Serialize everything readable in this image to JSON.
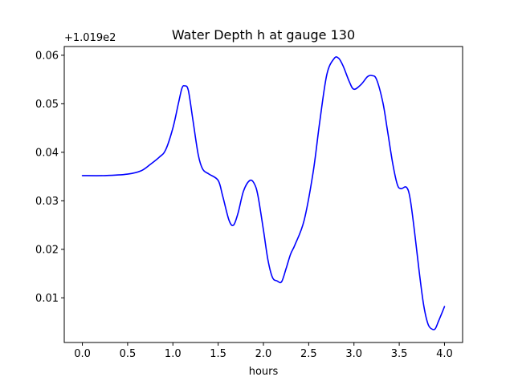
{
  "chart_data": {
    "type": "line",
    "title": "Water Depth h at gauge 130",
    "xlabel": "hours",
    "ylabel": "",
    "offset_label": "+1.019e2",
    "xlim": [
      -0.2,
      4.2
    ],
    "ylim": [
      0.0008,
      0.0618
    ],
    "xticks": [
      0.0,
      0.5,
      1.0,
      1.5,
      2.0,
      2.5,
      3.0,
      3.5,
      4.0
    ],
    "xtick_labels": [
      "0.0",
      "0.5",
      "1.0",
      "1.5",
      "2.0",
      "2.5",
      "3.0",
      "3.5",
      "4.0"
    ],
    "yticks": [
      0.01,
      0.02,
      0.03,
      0.04,
      0.05,
      0.06
    ],
    "ytick_labels": [
      "0.01",
      "0.02",
      "0.03",
      "0.04",
      "0.05",
      "0.06"
    ],
    "grid": false,
    "line_color": "#0000ff",
    "series": [
      {
        "x": [
          0.0,
          0.25,
          0.5,
          0.65,
          0.75,
          0.85,
          0.92,
          1.0,
          1.06,
          1.1,
          1.13,
          1.17,
          1.22,
          1.28,
          1.33,
          1.4,
          1.5,
          1.55,
          1.62,
          1.67,
          1.72,
          1.78,
          1.85,
          1.9,
          1.94,
          2.0,
          2.05,
          2.1,
          2.15,
          2.2,
          2.25,
          2.3,
          2.35,
          2.45,
          2.55,
          2.62,
          2.7,
          2.78,
          2.83,
          2.88,
          2.95,
          3.0,
          3.08,
          3.15,
          3.2,
          3.25,
          3.32,
          3.37,
          3.43,
          3.48,
          3.52,
          3.58,
          3.62,
          3.67,
          3.72,
          3.77,
          3.82,
          3.87,
          3.9,
          3.93,
          3.97,
          4.0
        ],
        "y": [
          0.0352,
          0.0352,
          0.0355,
          0.0362,
          0.0375,
          0.039,
          0.0405,
          0.045,
          0.05,
          0.0532,
          0.0537,
          0.0528,
          0.0468,
          0.0395,
          0.0365,
          0.0355,
          0.0342,
          0.031,
          0.026,
          0.025,
          0.0275,
          0.032,
          0.0342,
          0.0335,
          0.031,
          0.024,
          0.0178,
          0.0142,
          0.0135,
          0.0133,
          0.016,
          0.019,
          0.021,
          0.026,
          0.036,
          0.046,
          0.056,
          0.0593,
          0.0594,
          0.0578,
          0.0545,
          0.053,
          0.054,
          0.0556,
          0.0558,
          0.055,
          0.0502,
          0.0445,
          0.0375,
          0.0333,
          0.0325,
          0.0328,
          0.0305,
          0.0235,
          0.0155,
          0.0085,
          0.0045,
          0.0035,
          0.0037,
          0.005,
          0.0068,
          0.0082
        ]
      }
    ]
  }
}
